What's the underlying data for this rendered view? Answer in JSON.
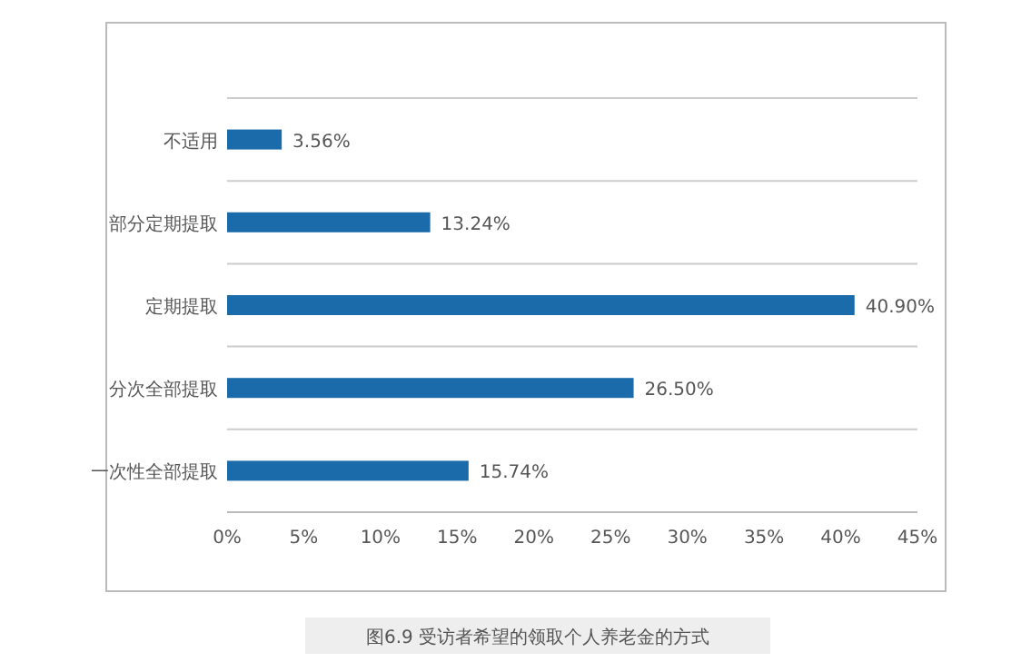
{
  "chart_data": {
    "type": "bar",
    "orientation": "horizontal",
    "title": "图6.9  受访者希望的领取个人养老金的方式",
    "categories": [
      "不适用",
      "部分定期提取",
      "定期提取",
      "分次全部提取",
      "一次性全部提取"
    ],
    "values": [
      3.56,
      13.24,
      40.9,
      26.5,
      15.74
    ],
    "value_labels": [
      "3.56%",
      "13.24%",
      "40.90%",
      "26.50%",
      "15.74%"
    ],
    "color": "#1b6aa9",
    "xlim": [
      0,
      45
    ],
    "xticks": [
      {
        "value": 0,
        "label": "0%"
      },
      {
        "value": 5,
        "label": "5%"
      },
      {
        "value": 10,
        "label": "10%"
      },
      {
        "value": 15,
        "label": "15%"
      },
      {
        "value": 20,
        "label": "20%"
      },
      {
        "value": 25,
        "label": "25%"
      },
      {
        "value": 30,
        "label": "30%"
      },
      {
        "value": 35,
        "label": "35%"
      },
      {
        "value": 40,
        "label": "40%"
      },
      {
        "value": 45,
        "label": "45%"
      }
    ],
    "grid": "y"
  }
}
